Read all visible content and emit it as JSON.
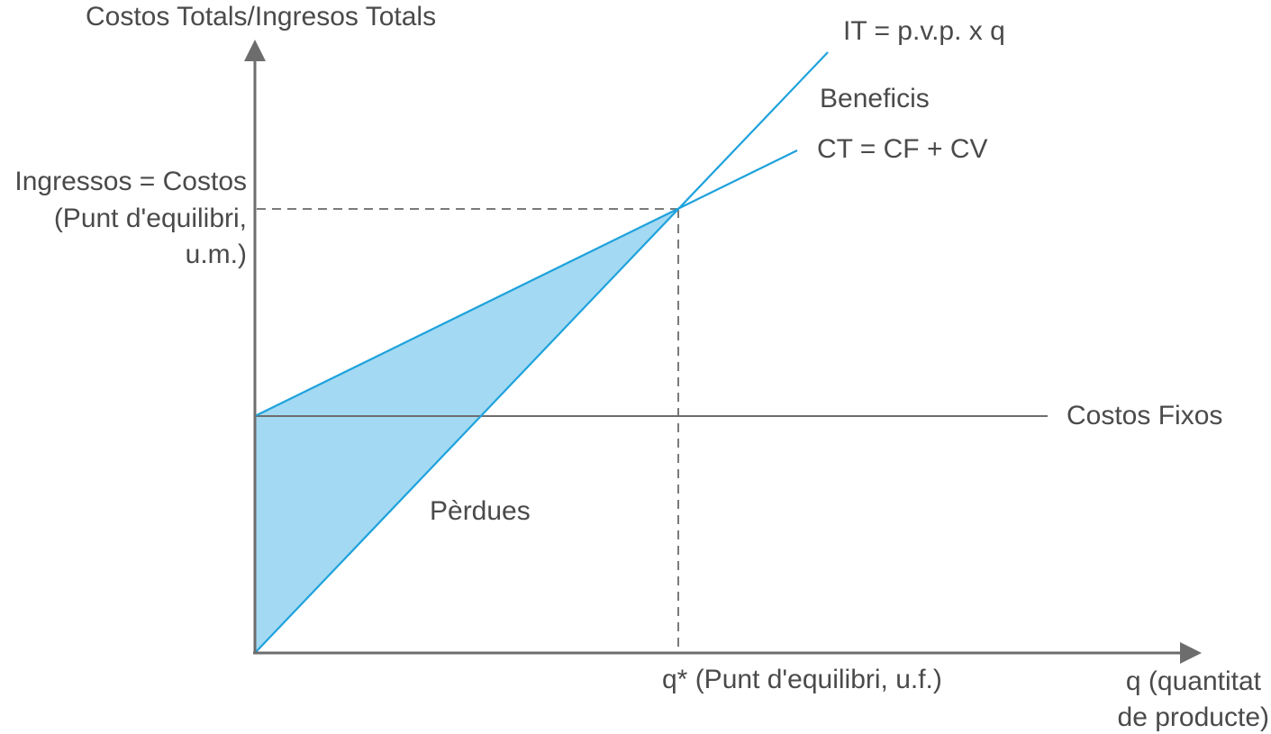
{
  "diagram": {
    "y_axis_title": "Costos Totals/Ingresos Totals",
    "x_axis_title_line1": "q (quantitat",
    "x_axis_title_line2": "de producte)",
    "revenue_line_label": "IT = p.v.p. x q",
    "total_cost_line_label": "CT = CF + CV",
    "fixed_cost_line_label": "Costos Fixos",
    "profit_region_label": "Beneficis",
    "loss_region_label": "Pèrdues",
    "breakeven_value_line1": "Ingressos = Costos",
    "breakeven_value_line2": "(Punt d'equilibri,",
    "breakeven_value_line3": "u.m.)",
    "breakeven_quantity_label": "q* (Punt d'equilibri, u.f.)"
  },
  "colors": {
    "axis": "#6d6d6d",
    "line": "#1ea2dc",
    "loss_fill": "#a3d9f2",
    "text": "#4a4a4a",
    "guide": "#7a7a7a"
  }
}
